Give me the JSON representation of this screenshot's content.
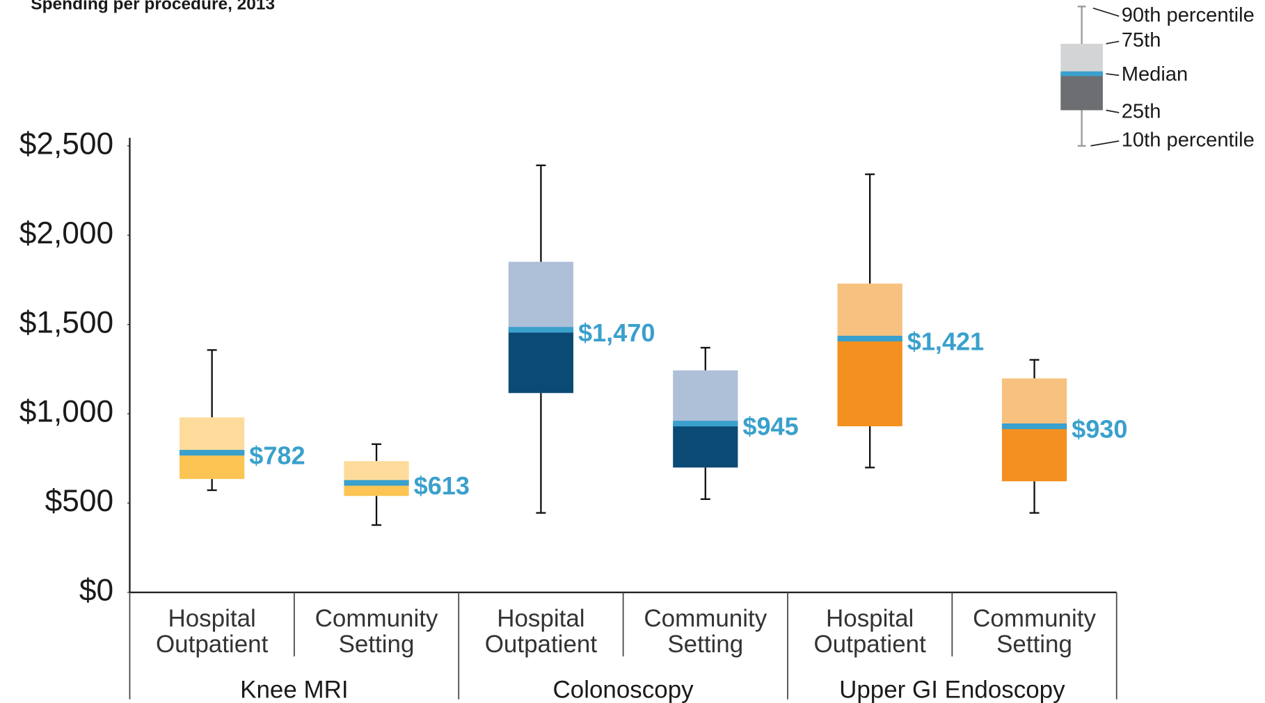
{
  "chart_data": {
    "type": "box",
    "title": "Spending per procedure, 2013",
    "ylim": [
      0,
      2500
    ],
    "yticks": [
      {
        "value": 0,
        "label": "$0"
      },
      {
        "value": 500,
        "label": "$500"
      },
      {
        "value": 1000,
        "label": "$1,000"
      },
      {
        "value": 1500,
        "label": "$1,500"
      },
      {
        "value": 2000,
        "label": "$2,000"
      },
      {
        "value": 2500,
        "label": "$2,500"
      }
    ],
    "median_color": "#3aa0cc",
    "groups": [
      {
        "name": "Knee MRI",
        "upper_color": "#fddc9b",
        "lower_color": "#fcc453",
        "boxes": [
          {
            "category": "Hospital Outpatient",
            "whisker_high": 1357,
            "q3": 980,
            "median": 782,
            "q1": 635,
            "whisker_low": 572,
            "value_label": "$782"
          },
          {
            "category": "Community Setting",
            "whisker_high": 830,
            "q3": 735,
            "median": 613,
            "q1": 540,
            "whisker_low": 377,
            "value_label": "$613"
          }
        ]
      },
      {
        "name": "Colonoscopy",
        "upper_color": "#aebfd8",
        "lower_color": "#0b4a75",
        "boxes": [
          {
            "category": "Hospital Outpatient",
            "whisker_high": 2391,
            "q3": 1851,
            "median": 1470,
            "q1": 1116,
            "whisker_low": 445,
            "value_label": "$1,470"
          },
          {
            "category": "Community Setting",
            "whisker_high": 1370,
            "q3": 1243,
            "median": 945,
            "q1": 699,
            "whisker_low": 522,
            "value_label": "$945"
          }
        ]
      },
      {
        "name": "Upper GI Endoscopy",
        "upper_color": "#f7c17f",
        "lower_color": "#f39020",
        "boxes": [
          {
            "category": "Hospital Outpatient",
            "whisker_high": 2341,
            "q3": 1729,
            "median": 1421,
            "q1": 930,
            "whisker_low": 699,
            "value_label": "$1,421"
          },
          {
            "category": "Community Setting",
            "whisker_high": 1302,
            "q3": 1198,
            "median": 930,
            "q1": 622,
            "whisker_low": 445,
            "value_label": "$930"
          }
        ]
      }
    ],
    "legend": {
      "upper_color": "#d3d4d6",
      "lower_color": "#6d6e71",
      "labels": [
        "90th percentile",
        "75th",
        "Median",
        "25th",
        "10th percentile"
      ]
    }
  }
}
